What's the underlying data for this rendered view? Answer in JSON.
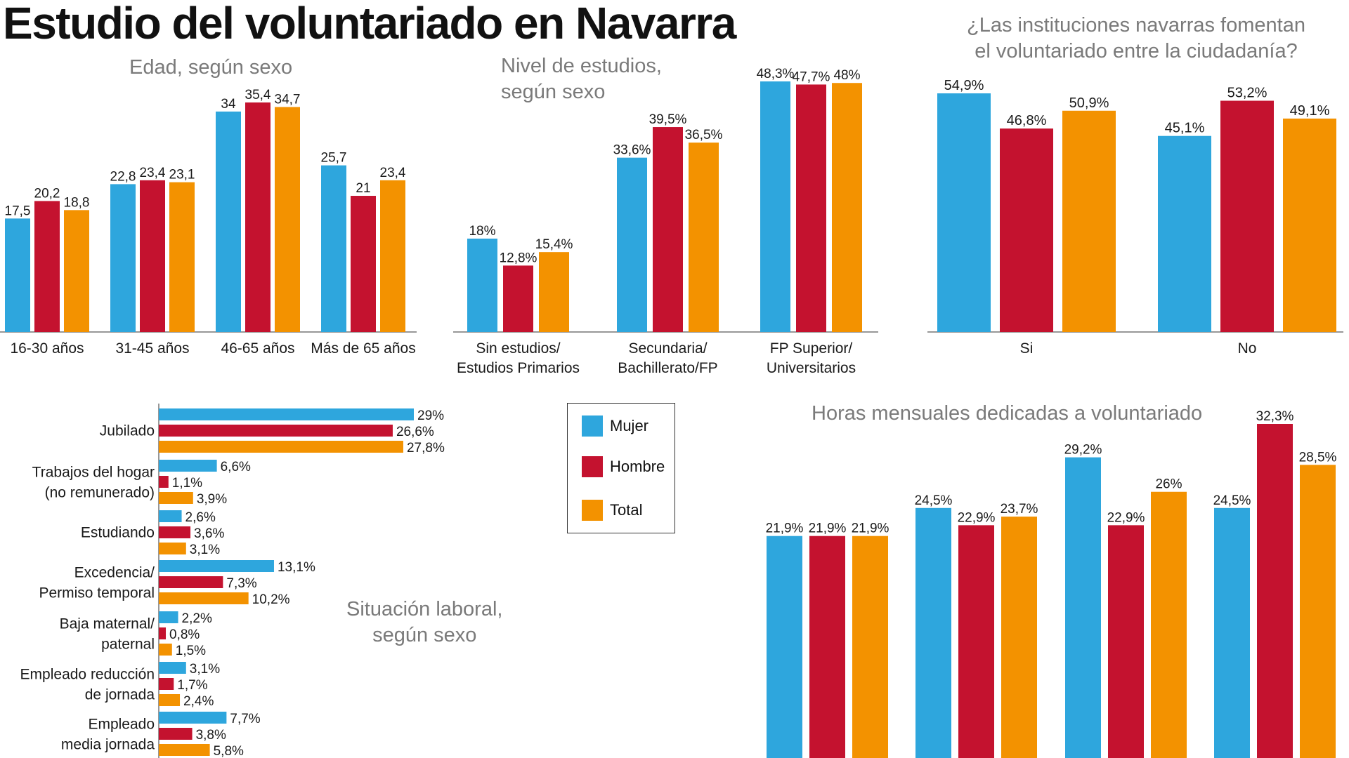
{
  "page": {
    "title": "Estudio del voluntariado en Navarra"
  },
  "colors": {
    "Mujer": "#2ea6dd",
    "Hombre": "#c4122f",
    "Total": "#f39200",
    "axis": "#777777",
    "label": "#1a1a1a"
  },
  "legend": [
    {
      "label": "Mujer",
      "color": "#2ea6dd"
    },
    {
      "label": "Hombre",
      "color": "#c4122f"
    },
    {
      "label": "Total",
      "color": "#f39200"
    }
  ],
  "chart_data": [
    {
      "id": "edad",
      "type": "bar",
      "title": "Edad, según sexo",
      "categories": [
        "16-30 años",
        "31-45 años",
        "46-65 años",
        "Más de 65 años"
      ],
      "series": [
        {
          "name": "Mujer",
          "values": [
            17.5,
            22.8,
            34,
            25.7
          ],
          "labels": [
            "17,5",
            "22,8",
            "34",
            "25,7"
          ]
        },
        {
          "name": "Hombre",
          "values": [
            20.2,
            23.4,
            35.4,
            21
          ],
          "labels": [
            "20,2",
            "23,4",
            "35,4",
            "21"
          ]
        },
        {
          "name": "Total",
          "values": [
            18.8,
            23.1,
            34.7,
            23.4
          ],
          "labels": [
            "18,8",
            "23,1",
            "34,7",
            "23,4"
          ]
        }
      ],
      "ylim": [
        0,
        35.4
      ]
    },
    {
      "id": "estudios",
      "type": "bar",
      "title": "Nivel de estudios, según sexo",
      "title_lines": [
        "Nivel de estudios,",
        "según sexo"
      ],
      "categories": [
        "Sin estudios/ Estudios Primarios",
        "Secundaria/ Bachillerato/FP",
        "FP Superior/ Universitarios"
      ],
      "category_lines": [
        [
          "Sin estudios/",
          "Estudios Primarios"
        ],
        [
          "Secundaria/",
          "Bachillerato/FP"
        ],
        [
          "FP Superior/",
          "Universitarios"
        ]
      ],
      "series": [
        {
          "name": "Mujer",
          "values": [
            18,
            33.6,
            48.3
          ],
          "labels": [
            "18%",
            "33,6%",
            "48,3%"
          ]
        },
        {
          "name": "Hombre",
          "values": [
            12.8,
            39.5,
            47.7
          ],
          "labels": [
            "12,8%",
            "39,5%",
            "47,7%"
          ]
        },
        {
          "name": "Total",
          "values": [
            15.4,
            36.5,
            48
          ],
          "labels": [
            "15,4%",
            "36,5%",
            "48%"
          ]
        }
      ],
      "ylim": [
        0,
        48.3
      ]
    },
    {
      "id": "instituciones",
      "type": "bar",
      "title": "¿Las instituciones navarras fomentan el voluntariado entre la ciudadanía?",
      "title_lines": [
        "¿Las instituciones navarras fomentan",
        "el voluntariado entre la ciudadanía?"
      ],
      "categories": [
        "Si",
        "No"
      ],
      "series": [
        {
          "name": "Mujer",
          "values": [
            54.9,
            45.1
          ],
          "labels": [
            "54,9%",
            "45,1%"
          ]
        },
        {
          "name": "Hombre",
          "values": [
            46.8,
            53.2
          ],
          "labels": [
            "46,8%",
            "53,2%"
          ]
        },
        {
          "name": "Total",
          "values": [
            50.9,
            49.1
          ],
          "labels": [
            "50,9%",
            "49,1%"
          ]
        }
      ],
      "ylim": [
        0,
        54.9
      ]
    },
    {
      "id": "situacion",
      "type": "bar",
      "orientation": "horizontal",
      "title": "Situación laboral, según sexo",
      "title_lines": [
        "Situación laboral,",
        "según sexo"
      ],
      "categories": [
        "Jubilado",
        "Trabajos del hogar (no remunerado)",
        "Estudiando",
        "Excedencia/ Permiso temporal",
        "Baja maternal/ paternal",
        "Empleado reducción de jornada",
        "Empleado media jornada"
      ],
      "category_lines": [
        [
          "Jubilado"
        ],
        [
          "Trabajos del hogar",
          "(no remunerado)"
        ],
        [
          "Estudiando"
        ],
        [
          "Excedencia/",
          "Permiso temporal"
        ],
        [
          "Baja maternal/",
          "paternal"
        ],
        [
          "Empleado reducción",
          "de jornada"
        ],
        [
          "Empleado",
          "media jornada"
        ]
      ],
      "series": [
        {
          "name": "Mujer",
          "values": [
            29,
            6.6,
            2.6,
            13.1,
            2.2,
            3.1,
            7.7
          ],
          "labels": [
            "29%",
            "6,6%",
            "2,6%",
            "13,1%",
            "2,2%",
            "3,1%",
            "7,7%"
          ]
        },
        {
          "name": "Hombre",
          "values": [
            26.6,
            1.1,
            3.6,
            7.3,
            0.8,
            1.7,
            3.8
          ],
          "labels": [
            "26,6%",
            "1,1%",
            "3,6%",
            "7,3%",
            "0,8%",
            "1,7%",
            "3,8%"
          ]
        },
        {
          "name": "Total",
          "values": [
            27.8,
            3.9,
            3.1,
            10.2,
            1.5,
            2.4,
            5.8
          ],
          "labels": [
            "27,8%",
            "3,9%",
            "3,1%",
            "10,2%",
            "1,5%",
            "2,4%",
            "5,8%"
          ]
        }
      ],
      "xlim": [
        0,
        29
      ]
    },
    {
      "id": "horas",
      "type": "bar",
      "title": "Horas mensuales dedicadas a voluntariado",
      "series": [
        {
          "name": "Mujer",
          "values": [
            21.9,
            24.5,
            29.2,
            24.5
          ],
          "labels": [
            "21,9%",
            "24,5%",
            "29,2%",
            "24,5%"
          ]
        },
        {
          "name": "Hombre",
          "values": [
            21.9,
            22.9,
            22.9,
            32.3
          ],
          "labels": [
            "21,9%",
            "22,9%",
            "22,9%",
            "32,3%"
          ]
        },
        {
          "name": "Total",
          "values": [
            21.9,
            23.7,
            26,
            28.5
          ],
          "labels": [
            "21,9%",
            "23,7%",
            "26%",
            "28,5%"
          ]
        }
      ],
      "ylim": [
        0,
        32.3
      ]
    }
  ]
}
